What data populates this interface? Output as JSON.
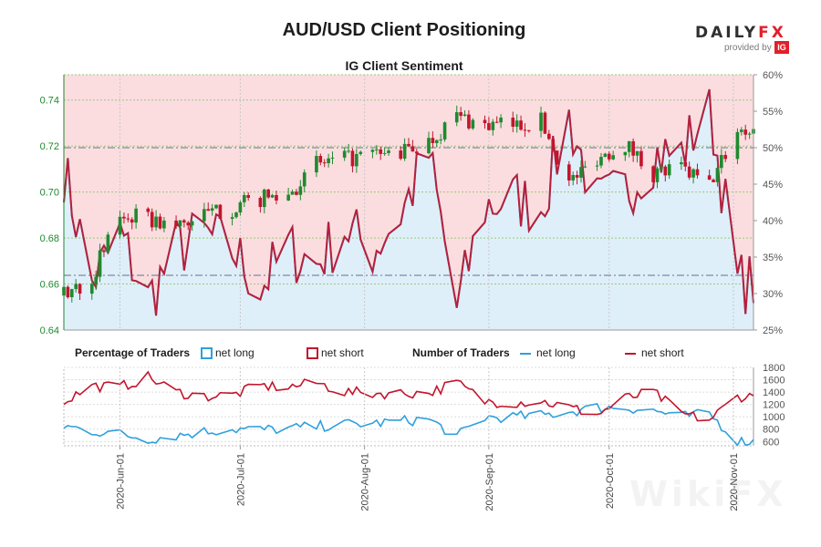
{
  "header": {
    "title": "AUD/USD Client Positioning",
    "subtitle": "IG Client Sentiment",
    "brand_prefix": "DAILY",
    "brand_x": "FX",
    "provided_by": "provided by",
    "ig_mark": "IG"
  },
  "watermark": "WikiFX",
  "colors": {
    "bull": "#1f8a2e",
    "bear": "#c2152d",
    "net_long": "#2fa0dc",
    "net_short": "#c2152d",
    "bg_short": "#fbdde0",
    "bg_long": "#dfeffa",
    "price_axis": "#1f8a2e"
  },
  "legend": {
    "pct_title": "Percentage of Traders",
    "pct_long": "net long",
    "pct_short": "net short",
    "num_title": "Number of Traders",
    "num_long": "net long",
    "num_short": "net short"
  },
  "chart_data": [
    {
      "type": "candlestick",
      "title": "IG Client Sentiment",
      "price_axis": {
        "ticks": [
          0.64,
          0.66,
          0.68,
          0.7,
          0.72,
          0.74
        ],
        "range": [
          0.64,
          0.751
        ],
        "side": "left"
      },
      "pct_axis": {
        "ticks": [
          "25%",
          "30%",
          "35%",
          "40%",
          "45%",
          "50%",
          "55%",
          "60%"
        ],
        "range": [
          25,
          60
        ],
        "side": "right"
      },
      "reference_lines": [
        {
          "axis": "pct",
          "value": 50
        },
        {
          "axis": "pct",
          "value": 32.5
        }
      ],
      "x_ticks": [
        "2020-Jun-01",
        "2020-Jul-01",
        "2020-Aug-01",
        "2020-Sep-01",
        "2020-Oct-01",
        "2020-Nov-01"
      ],
      "date_range": [
        "2020-05-18",
        "2020-11-06"
      ],
      "price_close_by_week": [
        {
          "date": "2020-05-18",
          "close": 0.655
        },
        {
          "date": "2020-05-25",
          "close": 0.663
        },
        {
          "date": "2020-06-01",
          "close": 0.69
        },
        {
          "date": "2020-06-08",
          "close": 0.688
        },
        {
          "date": "2020-06-15",
          "close": 0.685
        },
        {
          "date": "2020-06-22",
          "close": 0.69
        },
        {
          "date": "2020-06-29",
          "close": 0.693
        },
        {
          "date": "2020-07-06",
          "close": 0.697
        },
        {
          "date": "2020-07-13",
          "close": 0.699
        },
        {
          "date": "2020-07-20",
          "close": 0.712
        },
        {
          "date": "2020-07-27",
          "close": 0.714
        },
        {
          "date": "2020-08-03",
          "close": 0.716
        },
        {
          "date": "2020-08-10",
          "close": 0.717
        },
        {
          "date": "2020-08-17",
          "close": 0.722
        },
        {
          "date": "2020-08-24",
          "close": 0.733
        },
        {
          "date": "2020-08-31",
          "close": 0.729
        },
        {
          "date": "2020-09-07",
          "close": 0.729
        },
        {
          "date": "2020-09-14",
          "close": 0.731
        },
        {
          "date": "2020-09-21",
          "close": 0.704
        },
        {
          "date": "2020-09-28",
          "close": 0.715
        },
        {
          "date": "2020-10-05",
          "close": 0.721
        },
        {
          "date": "2020-10-12",
          "close": 0.708
        },
        {
          "date": "2020-10-19",
          "close": 0.71
        },
        {
          "date": "2020-10-26",
          "close": 0.703
        },
        {
          "date": "2020-11-02",
          "close": 0.727
        }
      ],
      "net_short_pct_by_week": [
        {
          "date": "2020-05-18",
          "value": 47.0
        },
        {
          "date": "2020-05-25",
          "value": 31.5
        },
        {
          "date": "2020-06-01",
          "value": 38.0
        },
        {
          "date": "2020-06-08",
          "value": 29.0
        },
        {
          "date": "2020-06-15",
          "value": 36.0
        },
        {
          "date": "2020-06-22",
          "value": 38.0
        },
        {
          "date": "2020-06-29",
          "value": 36.0
        },
        {
          "date": "2020-07-06",
          "value": 31.0
        },
        {
          "date": "2020-07-13",
          "value": 36.0
        },
        {
          "date": "2020-07-20",
          "value": 34.0
        },
        {
          "date": "2020-07-27",
          "value": 39.0
        },
        {
          "date": "2020-08-03",
          "value": 36.0
        },
        {
          "date": "2020-08-10",
          "value": 41.0
        },
        {
          "date": "2020-08-17",
          "value": 49.0
        },
        {
          "date": "2020-08-24",
          "value": 28.0
        },
        {
          "date": "2020-08-31",
          "value": 42.0
        },
        {
          "date": "2020-09-07",
          "value": 43.0
        },
        {
          "date": "2020-09-14",
          "value": 42.0
        },
        {
          "date": "2020-09-21",
          "value": 54.0
        },
        {
          "date": "2020-09-28",
          "value": 42.0
        },
        {
          "date": "2020-10-05",
          "value": 44.0
        },
        {
          "date": "2020-10-12",
          "value": 49.0
        },
        {
          "date": "2020-10-19",
          "value": 49.0
        },
        {
          "date": "2020-10-26",
          "value": 56.0
        },
        {
          "date": "2020-11-02",
          "value": 31.5
        }
      ]
    },
    {
      "type": "line",
      "title": "Number of Traders",
      "y_axis": {
        "ticks": [
          600,
          800,
          1000,
          1200,
          1400,
          1600,
          1800
        ],
        "range": [
          530,
          1800
        ],
        "side": "right"
      },
      "series": [
        {
          "name": "net long",
          "values_by_week": [
            850,
            770,
            720,
            640,
            700,
            760,
            800,
            790,
            810,
            840,
            880,
            890,
            930,
            960,
            680,
            990,
            1000,
            1020,
            1080,
            1150,
            1150,
            1100,
            1000,
            1050,
            600
          ]
        },
        {
          "name": "net short",
          "values_by_week": [
            1250,
            1500,
            1480,
            1640,
            1400,
            1330,
            1350,
            1500,
            1480,
            1550,
            1400,
            1380,
            1380,
            1390,
            1550,
            1250,
            1230,
            1250,
            1150,
            1030,
            1300,
            1400,
            1050,
            950,
            1330
          ]
        }
      ]
    }
  ]
}
